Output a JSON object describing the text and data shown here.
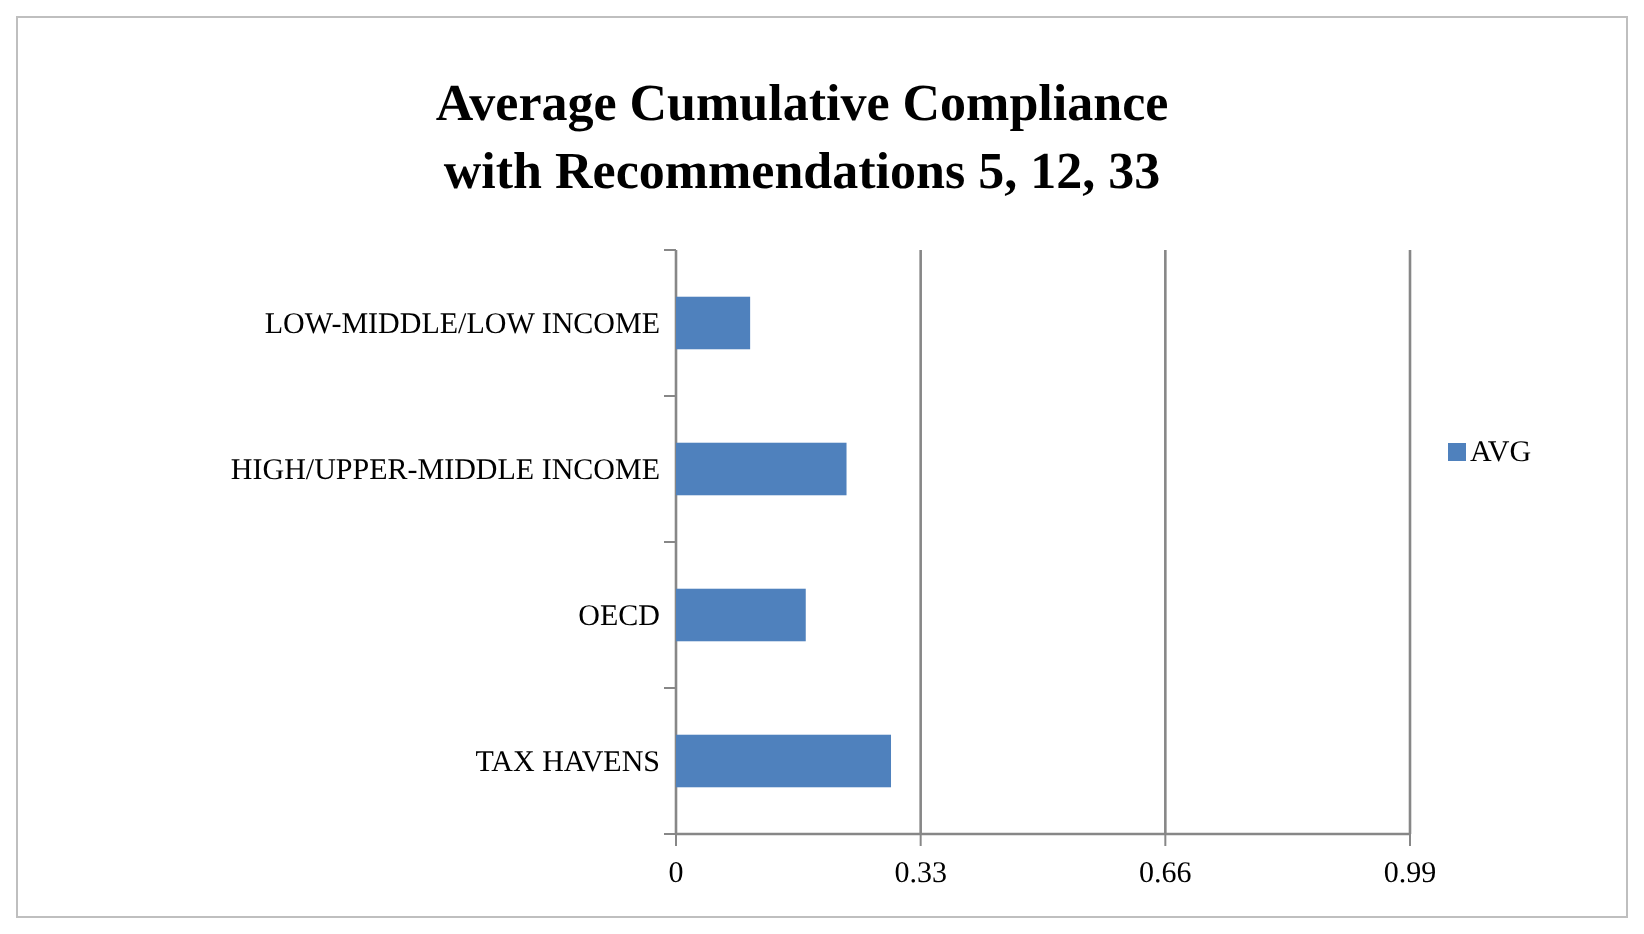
{
  "chart_data": {
    "type": "bar",
    "orientation": "horizontal",
    "title": "Average Cumulative Compliance with Recommendations 5, 12, 33",
    "categories": [
      "LOW-MIDDLE/LOW INCOME",
      "HIGH/UPPER-MIDDLE INCOME",
      "OECD",
      "TAX HAVENS"
    ],
    "series": [
      {
        "name": "AVG",
        "color": "#4f81bd",
        "values": [
          0.1,
          0.23,
          0.175,
          0.29
        ]
      }
    ],
    "xlim": [
      0,
      0.99
    ],
    "xticks": [
      0,
      0.33,
      0.66,
      0.99
    ],
    "grid": "x",
    "legend": "right"
  }
}
